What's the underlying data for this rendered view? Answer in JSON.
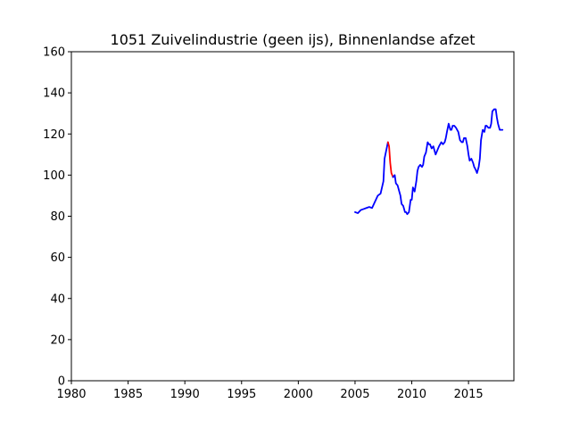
{
  "chart_data": {
    "type": "line",
    "title": "1051 Zuivelindustrie (geen ijs), Binnenlandse afzet",
    "xlabel": "",
    "ylabel": "",
    "xlim": [
      1980,
      2019
    ],
    "ylim": [
      0,
      160
    ],
    "xticks": [
      1980,
      1985,
      1990,
      1995,
      2000,
      2005,
      2010,
      2015
    ],
    "yticks": [
      0,
      20,
      40,
      60,
      80,
      100,
      120,
      140,
      160
    ],
    "grid": false,
    "series": [
      {
        "color": "#0000ff",
        "x": [
          2005.0,
          2005.25,
          2005.5,
          2005.75,
          2006.0,
          2006.25,
          2006.5,
          2006.75,
          2007.0,
          2007.25,
          2007.5,
          2007.6,
          2007.75,
          2007.9
        ],
        "y": [
          82,
          81.5,
          83,
          83.5,
          84,
          84.5,
          84,
          87,
          90,
          91,
          97,
          108,
          112,
          116
        ]
      },
      {
        "color": "#ff0000",
        "x": [
          2007.9,
          2008.0,
          2008.1,
          2008.2,
          2008.35
        ],
        "y": [
          116,
          114,
          106,
          101,
          99
        ]
      },
      {
        "color": "#0000ff",
        "x": [
          2008.35,
          2008.5,
          2008.6,
          2008.75,
          2008.9,
          2009.0,
          2009.1,
          2009.25,
          2009.4,
          2009.5,
          2009.6,
          2009.75,
          2009.9,
          2010.0,
          2010.1,
          2010.25,
          2010.4,
          2010.5,
          2010.6,
          2010.75,
          2010.9,
          2011.0,
          2011.1,
          2011.25,
          2011.4,
          2011.5,
          2011.6,
          2011.75,
          2011.9,
          2012.0,
          2012.1,
          2012.25,
          2012.4,
          2012.5,
          2012.6,
          2012.75,
          2012.9,
          2013.0,
          2013.1,
          2013.25,
          2013.4,
          2013.5,
          2013.6,
          2013.75,
          2013.9,
          2014.0,
          2014.1,
          2014.25,
          2014.4,
          2014.5,
          2014.6,
          2014.75,
          2014.9,
          2015.0,
          2015.1,
          2015.25,
          2015.4,
          2015.5,
          2015.6,
          2015.75,
          2015.9,
          2016.0,
          2016.1,
          2016.25,
          2016.4,
          2016.5,
          2016.6,
          2016.75,
          2016.9,
          2017.0,
          2017.1,
          2017.25,
          2017.4,
          2017.5,
          2017.6,
          2017.75,
          2017.9,
          2018.0
        ],
        "y": [
          99,
          100,
          96,
          95,
          92,
          90,
          86,
          85,
          82,
          82,
          81,
          82,
          88,
          88,
          94,
          92,
          97,
          102,
          104,
          105,
          104,
          105,
          109,
          111,
          116,
          115,
          115,
          113,
          114,
          112,
          110,
          112,
          114,
          115,
          116,
          115,
          116,
          118,
          121,
          125,
          122,
          122,
          124,
          124,
          123,
          122,
          121,
          117,
          116,
          116,
          118,
          118,
          114,
          110,
          107,
          108,
          106,
          104,
          103,
          101,
          104,
          108,
          117,
          122,
          121,
          124,
          124,
          123,
          123,
          125,
          131,
          132,
          132,
          128,
          125,
          122,
          122,
          122
        ]
      }
    ]
  }
}
